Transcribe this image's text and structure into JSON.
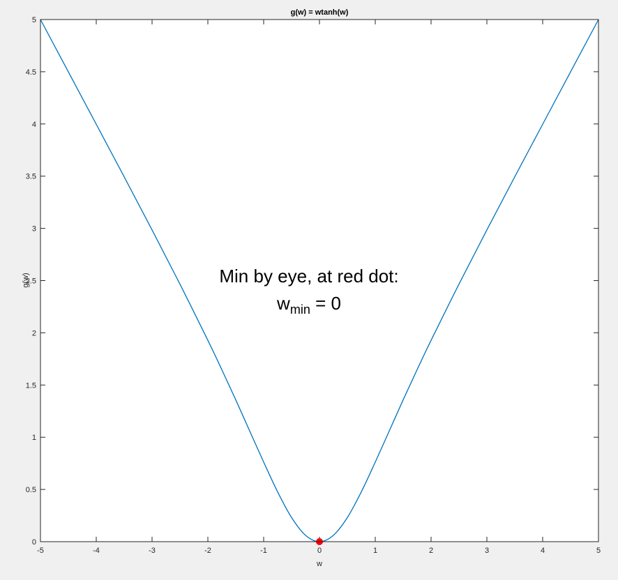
{
  "chart_data": {
    "type": "line",
    "title": "g(w) = wtanh(w)",
    "xlabel": "w",
    "ylabel": "g(w)",
    "xlim": [
      -5,
      5
    ],
    "ylim": [
      0,
      5
    ],
    "xticks": [
      -5,
      -4,
      -3,
      -2,
      -1,
      0,
      1,
      2,
      3,
      4,
      5
    ],
    "yticks": [
      0,
      0.5,
      1,
      1.5,
      2,
      2.5,
      3,
      3.5,
      4,
      4.5,
      5
    ],
    "xtick_labels": [
      "-5",
      "-4",
      "-3",
      "-2",
      "-1",
      "0",
      "1",
      "2",
      "3",
      "4",
      "5"
    ],
    "ytick_labels": [
      "0",
      "0.5",
      "1",
      "1.5",
      "2",
      "2.5",
      "3",
      "3.5",
      "4",
      "4.5",
      "5"
    ],
    "grid": false,
    "series": [
      {
        "color": "#0072bd",
        "x": [
          -5,
          -4.5,
          -4,
          -3.5,
          -3,
          -2.5,
          -2,
          -1.75,
          -1.5,
          -1.25,
          -1,
          -0.75,
          -0.5,
          -0.25,
          0,
          0.25,
          0.5,
          0.75,
          1,
          1.25,
          1.5,
          1.75,
          2,
          2.5,
          3,
          3.5,
          4,
          4.5,
          5
        ],
        "y": [
          5.0,
          4.499,
          3.997,
          3.494,
          2.985,
          2.466,
          1.928,
          1.647,
          1.358,
          1.059,
          0.762,
          0.477,
          0.231,
          0.061,
          0,
          0.061,
          0.231,
          0.477,
          0.762,
          1.059,
          1.358,
          1.647,
          1.928,
          2.466,
          2.985,
          3.494,
          3.997,
          4.499,
          5.0
        ]
      }
    ],
    "points": [
      {
        "x": 0,
        "y": 0,
        "color": "#ff0000"
      }
    ],
    "annotation": {
      "line1": "Min by eye, at red dot:",
      "w": "w",
      "sub": "min",
      "rest": " = 0"
    }
  }
}
